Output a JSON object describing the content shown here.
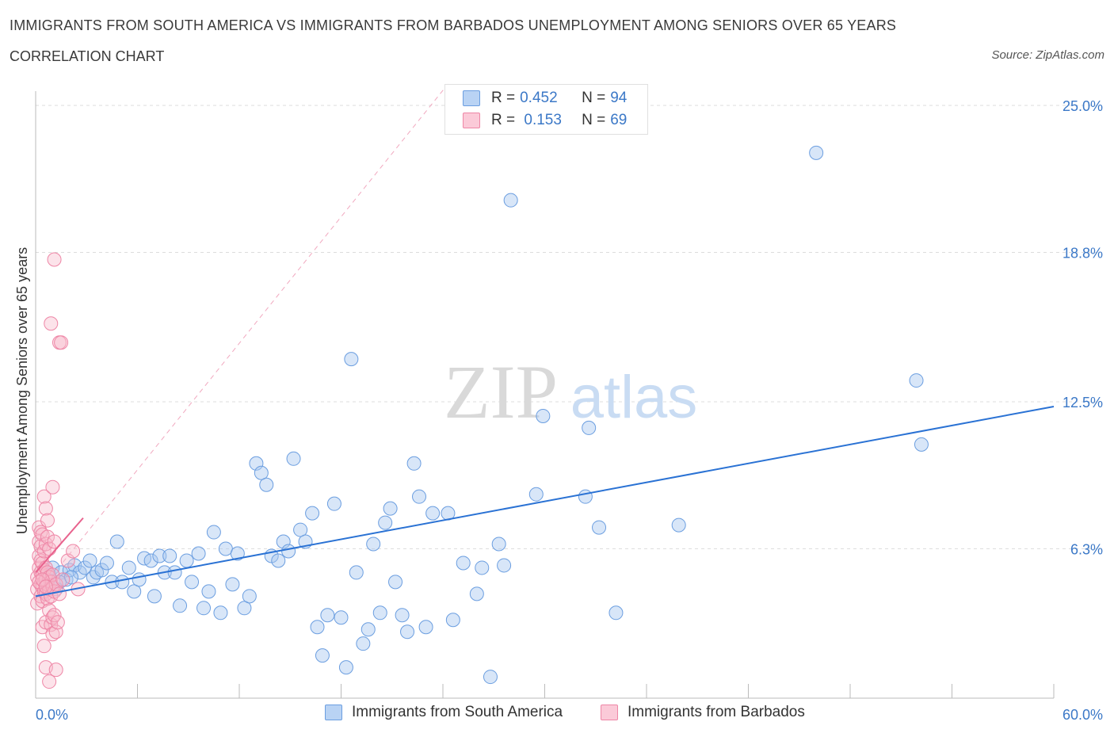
{
  "header": {
    "title": "IMMIGRANTS FROM SOUTH AMERICA VS IMMIGRANTS FROM BARBADOS UNEMPLOYMENT AMONG SENIORS OVER 65 YEARS",
    "subtitle": "CORRELATION CHART",
    "source": "Source: ZipAtlas.com"
  },
  "legend": {
    "rows": [
      {
        "r_label": "R = ",
        "r_value": "0.452",
        "n_label": "N = ",
        "n_value": "94"
      },
      {
        "r_label": "R = ",
        "r_value": " 0.153",
        "n_label": "N = ",
        "n_value": "69"
      }
    ]
  },
  "watermark": {
    "zip": "ZIP",
    "atlas": "atlas"
  },
  "colors": {
    "blue_fill": "#a9c8f0",
    "blue_stroke": "#6b9ee0",
    "blue_line": "#2a72d4",
    "pink_fill": "#f7b8cb",
    "pink_stroke": "#ee86a6",
    "pink_line": "#e8628d",
    "axis_text": "#3b78c7",
    "grid": "#dddddd"
  },
  "chart_data": {
    "type": "scatter",
    "title": "IMMIGRANTS FROM SOUTH AMERICA VS IMMIGRANTS FROM BARBADOS UNEMPLOYMENT AMONG SENIORS OVER 65 YEARS",
    "xlabel": "",
    "ylabel": "Unemployment Among Seniors over 65 years",
    "xlim": [
      0,
      60
    ],
    "ylim": [
      0,
      25.0
    ],
    "x_tick_labels": [
      "0.0%",
      "60.0%"
    ],
    "y_ticks": [
      6.3,
      12.5,
      18.8,
      25.0
    ],
    "y_tick_labels": [
      "6.3%",
      "12.5%",
      "18.8%",
      "25.0%"
    ],
    "legend_position": "top-center",
    "series": [
      {
        "name": "Immigrants from South America",
        "R": 0.452,
        "N": 94,
        "trend": {
          "x": [
            0.0,
            60.0
          ],
          "y": [
            4.3,
            12.3
          ]
        },
        "points": [
          [
            0.6,
            4.8
          ],
          [
            0.8,
            5.2
          ],
          [
            1.0,
            5.5
          ],
          [
            1.2,
            4.6
          ],
          [
            1.5,
            5.3
          ],
          [
            1.8,
            5.0
          ],
          [
            2.0,
            5.4
          ],
          [
            2.3,
            5.6
          ],
          [
            2.6,
            5.3
          ],
          [
            2.9,
            5.5
          ],
          [
            3.2,
            5.8
          ],
          [
            3.4,
            5.1
          ],
          [
            3.6,
            5.3
          ],
          [
            3.9,
            5.4
          ],
          [
            4.2,
            5.7
          ],
          [
            4.5,
            4.9
          ],
          [
            4.8,
            6.6
          ],
          [
            5.1,
            4.9
          ],
          [
            5.5,
            5.5
          ],
          [
            5.8,
            4.5
          ],
          [
            6.1,
            5.0
          ],
          [
            6.4,
            5.9
          ],
          [
            6.8,
            5.8
          ],
          [
            7.0,
            4.3
          ],
          [
            7.3,
            6.0
          ],
          [
            7.6,
            5.3
          ],
          [
            7.9,
            6.0
          ],
          [
            8.2,
            5.3
          ],
          [
            8.5,
            3.9
          ],
          [
            8.9,
            5.8
          ],
          [
            9.2,
            4.9
          ],
          [
            9.6,
            6.1
          ],
          [
            9.9,
            3.8
          ],
          [
            10.2,
            4.5
          ],
          [
            10.5,
            7.0
          ],
          [
            10.9,
            3.6
          ],
          [
            11.2,
            6.3
          ],
          [
            11.6,
            4.8
          ],
          [
            11.9,
            6.1
          ],
          [
            12.3,
            3.8
          ],
          [
            12.6,
            4.3
          ],
          [
            13.0,
            9.9
          ],
          [
            13.3,
            9.5
          ],
          [
            13.6,
            9.0
          ],
          [
            13.9,
            6.0
          ],
          [
            14.3,
            5.8
          ],
          [
            14.6,
            6.6
          ],
          [
            14.9,
            6.2
          ],
          [
            15.2,
            10.1
          ],
          [
            15.6,
            7.1
          ],
          [
            15.9,
            6.6
          ],
          [
            16.3,
            7.8
          ],
          [
            16.6,
            3.0
          ],
          [
            16.9,
            1.8
          ],
          [
            17.2,
            3.5
          ],
          [
            17.6,
            8.2
          ],
          [
            18.0,
            3.4
          ],
          [
            18.3,
            1.3
          ],
          [
            18.6,
            14.3
          ],
          [
            18.9,
            5.3
          ],
          [
            19.3,
            2.3
          ],
          [
            19.6,
            2.9
          ],
          [
            19.9,
            6.5
          ],
          [
            20.3,
            3.6
          ],
          [
            20.6,
            7.4
          ],
          [
            20.9,
            8.0
          ],
          [
            21.2,
            4.9
          ],
          [
            21.6,
            3.5
          ],
          [
            21.9,
            2.8
          ],
          [
            22.3,
            9.9
          ],
          [
            22.6,
            8.5
          ],
          [
            23.0,
            3.0
          ],
          [
            23.4,
            7.8
          ],
          [
            24.3,
            7.8
          ],
          [
            24.6,
            3.3
          ],
          [
            25.2,
            5.7
          ],
          [
            26.0,
            4.4
          ],
          [
            26.3,
            5.5
          ],
          [
            26.8,
            0.9
          ],
          [
            27.3,
            6.5
          ],
          [
            27.6,
            5.6
          ],
          [
            29.5,
            8.6
          ],
          [
            29.9,
            11.9
          ],
          [
            32.4,
            8.5
          ],
          [
            32.6,
            11.4
          ],
          [
            33.2,
            7.2
          ],
          [
            34.2,
            3.6
          ],
          [
            37.9,
            7.3
          ],
          [
            46.0,
            23.0
          ],
          [
            51.9,
            13.4
          ],
          [
            52.2,
            10.7
          ],
          [
            28.0,
            21.0
          ],
          [
            1.4,
            4.9
          ],
          [
            2.1,
            5.1
          ]
        ]
      },
      {
        "name": "Immigrants from Barbados",
        "R": 0.153,
        "N": 69,
        "trend": {
          "x": [
            0.0,
            2.8
          ],
          "y": [
            5.3,
            7.6
          ]
        },
        "points": [
          [
            0.1,
            4.0
          ],
          [
            0.1,
            4.6
          ],
          [
            0.1,
            5.1
          ],
          [
            0.2,
            5.5
          ],
          [
            0.2,
            6.0
          ],
          [
            0.2,
            6.6
          ],
          [
            0.2,
            7.2
          ],
          [
            0.3,
            4.3
          ],
          [
            0.3,
            4.8
          ],
          [
            0.3,
            5.3
          ],
          [
            0.3,
            5.8
          ],
          [
            0.3,
            6.4
          ],
          [
            0.3,
            7.0
          ],
          [
            0.4,
            3.0
          ],
          [
            0.4,
            4.1
          ],
          [
            0.4,
            4.7
          ],
          [
            0.4,
            5.2
          ],
          [
            0.4,
            5.7
          ],
          [
            0.4,
            6.9
          ],
          [
            0.5,
            2.2
          ],
          [
            0.5,
            4.5
          ],
          [
            0.5,
            4.9
          ],
          [
            0.5,
            5.4
          ],
          [
            0.5,
            6.2
          ],
          [
            0.5,
            8.5
          ],
          [
            0.6,
            1.3
          ],
          [
            0.6,
            3.2
          ],
          [
            0.6,
            4.4
          ],
          [
            0.6,
            5.0
          ],
          [
            0.6,
            5.5
          ],
          [
            0.6,
            6.5
          ],
          [
            0.6,
            8.0
          ],
          [
            0.7,
            4.2
          ],
          [
            0.7,
            4.8
          ],
          [
            0.7,
            5.3
          ],
          [
            0.7,
            6.8
          ],
          [
            0.7,
            7.5
          ],
          [
            0.8,
            0.7
          ],
          [
            0.8,
            3.7
          ],
          [
            0.8,
            4.6
          ],
          [
            0.8,
            5.1
          ],
          [
            0.8,
            6.3
          ],
          [
            0.9,
            3.1
          ],
          [
            0.9,
            4.3
          ],
          [
            0.9,
            4.9
          ],
          [
            0.9,
            15.8
          ],
          [
            1.0,
            2.7
          ],
          [
            1.0,
            3.4
          ],
          [
            1.0,
            4.7
          ],
          [
            1.0,
            5.2
          ],
          [
            1.0,
            8.9
          ],
          [
            1.1,
            3.5
          ],
          [
            1.1,
            4.5
          ],
          [
            1.1,
            6.6
          ],
          [
            1.1,
            18.5
          ],
          [
            1.2,
            2.8
          ],
          [
            1.2,
            4.8
          ],
          [
            1.2,
            1.2
          ],
          [
            1.3,
            3.2
          ],
          [
            1.4,
            4.4
          ],
          [
            1.4,
            15.0
          ],
          [
            1.5,
            15.0
          ],
          [
            1.6,
            5.0
          ],
          [
            1.9,
            5.8
          ],
          [
            2.2,
            6.2
          ],
          [
            2.5,
            4.6
          ],
          [
            0.2,
            4.9
          ],
          [
            0.4,
            5.0
          ],
          [
            0.6,
            4.7
          ]
        ]
      }
    ]
  },
  "bottom_legend": {
    "items": [
      "Immigrants from South America",
      "Immigrants from Barbados"
    ]
  }
}
